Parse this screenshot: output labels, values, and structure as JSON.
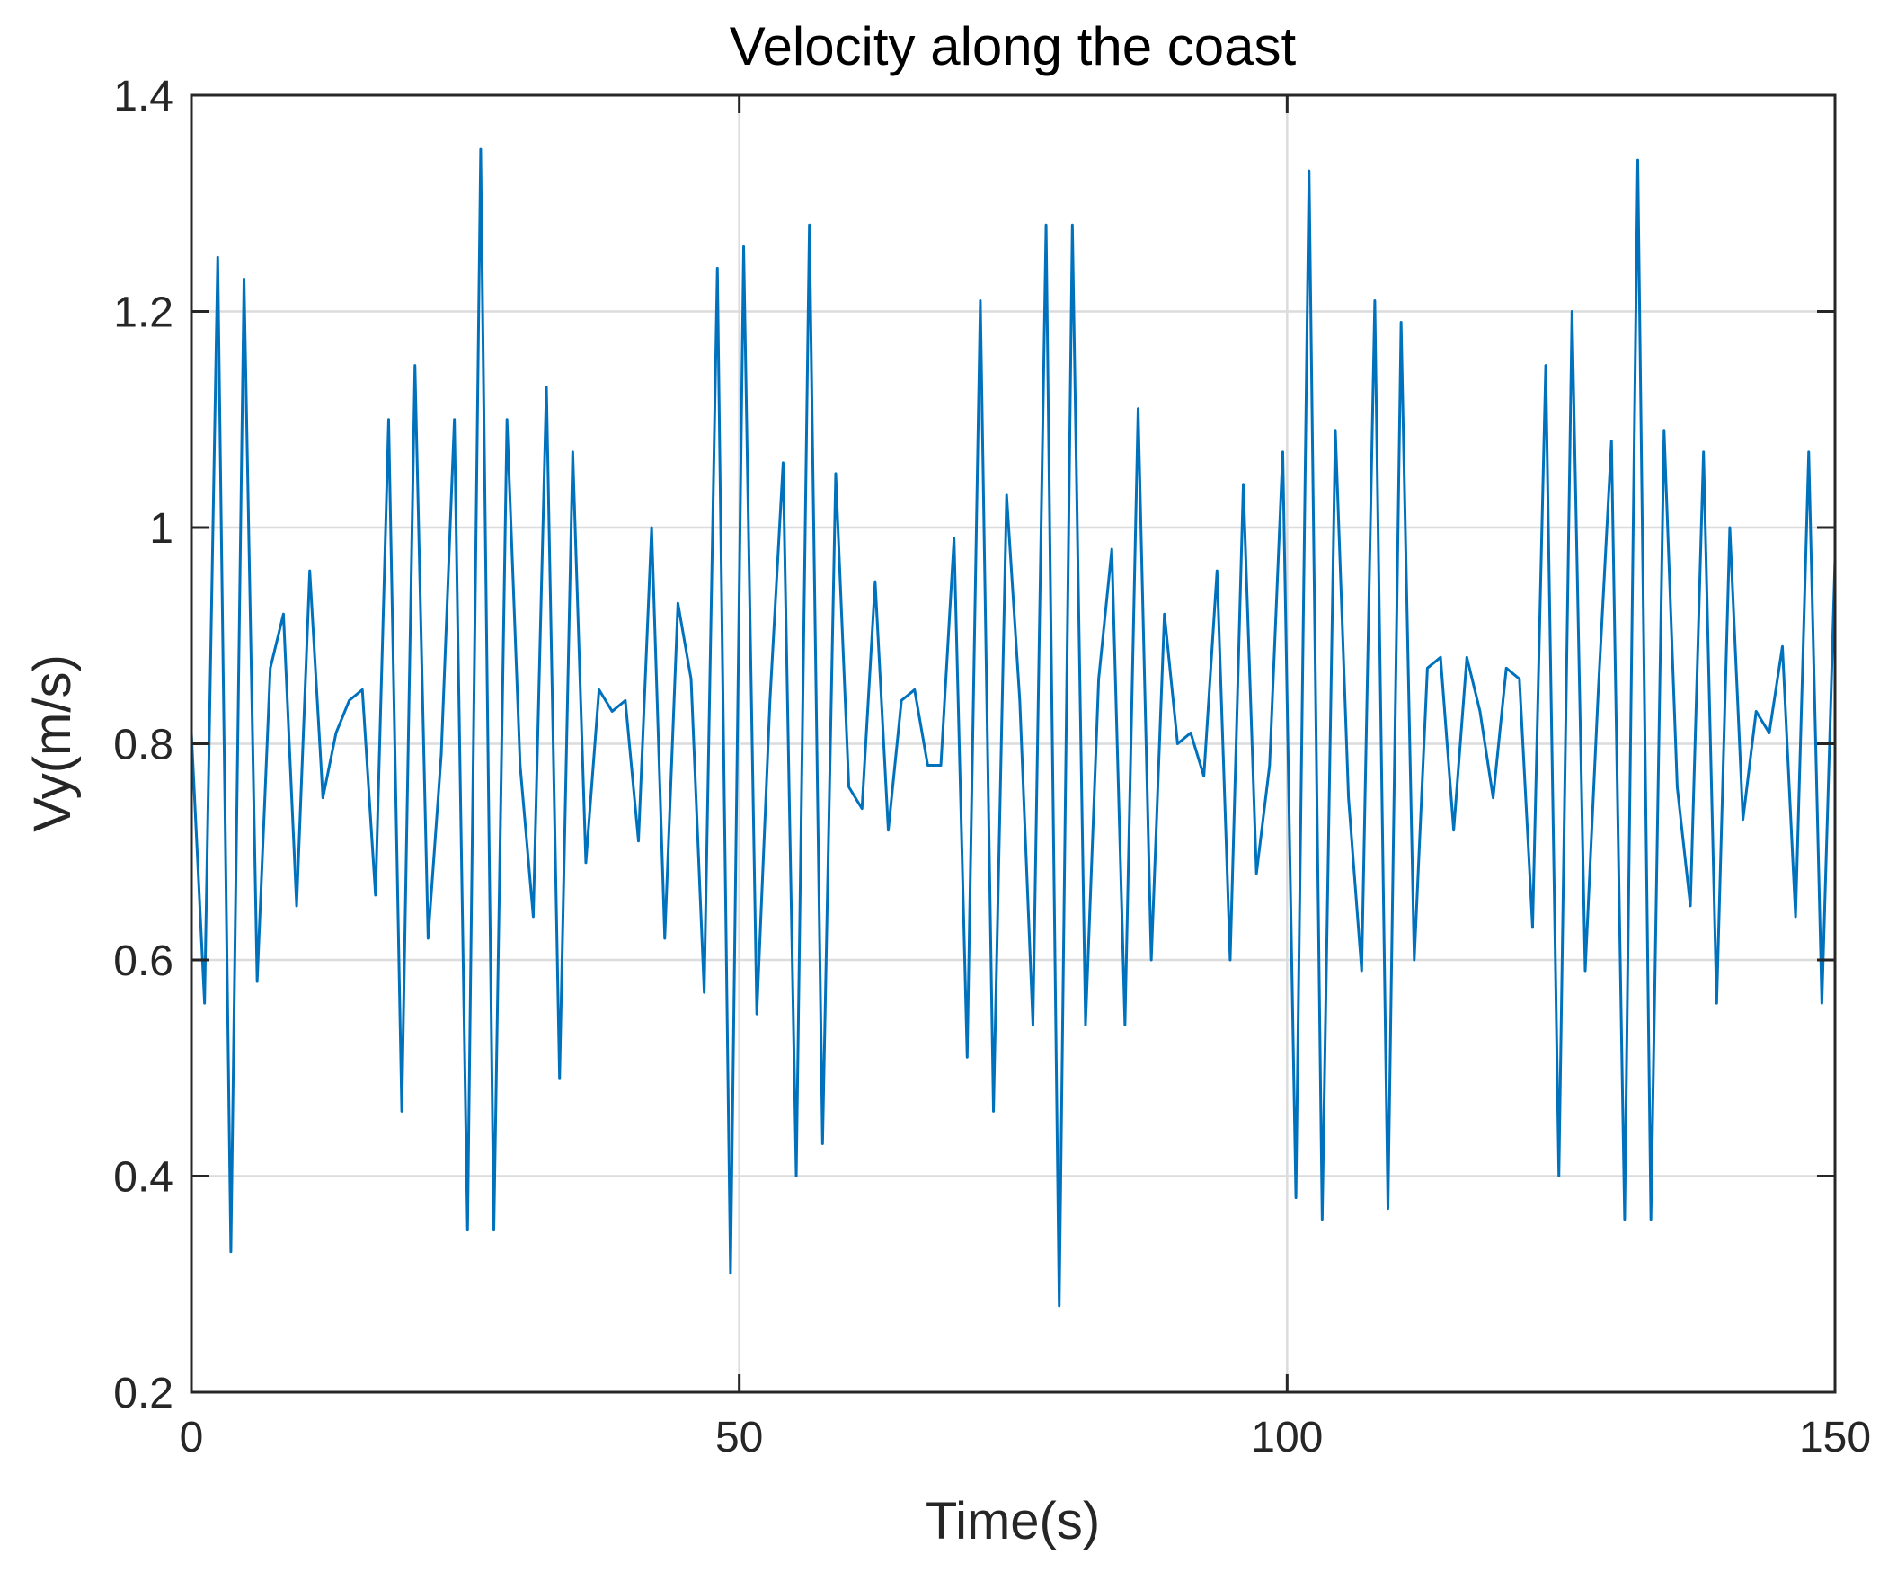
{
  "chart_data": {
    "type": "line",
    "title": "Velocity along the coast",
    "xlabel": "Time(s)",
    "ylabel": "Vy(m/s)",
    "xlim": [
      0,
      150
    ],
    "ylim": [
      0.2,
      1.4
    ],
    "xticks": [
      0,
      50,
      100,
      150
    ],
    "xtick_labels": [
      "0",
      "50",
      "100",
      "150"
    ],
    "yticks": [
      0.2,
      0.4,
      0.6,
      0.8,
      1.0,
      1.2,
      1.4
    ],
    "ytick_labels": [
      "0.2",
      "0.4",
      "0.6",
      "0.8",
      "1",
      "1.2",
      "1.4"
    ],
    "grid": true,
    "line_color": "#0072bd",
    "series": [
      {
        "name": "Vy",
        "x": [
          0,
          1.2,
          2.4,
          3.6,
          4.8,
          6.0,
          7.2,
          8.4,
          9.6,
          10.8,
          12.0,
          13.2,
          14.4,
          15.6,
          16.8,
          18.0,
          19.2,
          20.4,
          21.6,
          22.8,
          24.0,
          25.2,
          26.4,
          27.6,
          28.8,
          30.0,
          31.2,
          32.4,
          33.6,
          34.8,
          36.0,
          37.2,
          38.4,
          39.6,
          40.8,
          42.0,
          43.2,
          44.4,
          45.6,
          46.8,
          48.0,
          49.2,
          50.4,
          51.6,
          52.8,
          54.0,
          55.2,
          56.4,
          57.6,
          58.8,
          60.0,
          61.2,
          62.4,
          63.6,
          64.8,
          66.0,
          67.2,
          68.4,
          69.6,
          70.8,
          72.0,
          73.2,
          74.4,
          75.6,
          76.8,
          78.0,
          79.2,
          80.4,
          81.6,
          82.8,
          84.0,
          85.2,
          86.4,
          87.6,
          88.8,
          90.0,
          91.2,
          92.4,
          93.6,
          94.8,
          96.0,
          97.2,
          98.4,
          99.6,
          100.8,
          102.0,
          103.2,
          104.4,
          105.6,
          106.8,
          108.0,
          109.2,
          110.4,
          111.6,
          112.8,
          114.0,
          115.2,
          116.4,
          117.6,
          118.8,
          120.0,
          121.2,
          122.4,
          123.6,
          124.8,
          126.0,
          127.2,
          128.4,
          129.6,
          130.8,
          132.0,
          133.2,
          134.4,
          135.6,
          136.8,
          138.0,
          139.2,
          140.4,
          141.6,
          142.8,
          144.0,
          145.2,
          146.4,
          147.6,
          148.8,
          150.0
        ],
        "values": [
          0.81,
          0.56,
          1.25,
          0.33,
          1.23,
          0.58,
          0.87,
          0.92,
          0.65,
          0.96,
          0.75,
          0.81,
          0.84,
          0.85,
          0.66,
          1.1,
          0.46,
          1.15,
          0.62,
          0.79,
          1.1,
          0.35,
          1.35,
          0.35,
          1.1,
          0.78,
          0.64,
          1.13,
          0.49,
          1.07,
          0.69,
          0.85,
          0.83,
          0.84,
          0.71,
          1.0,
          0.62,
          0.93,
          0.86,
          0.57,
          1.24,
          0.31,
          1.26,
          0.55,
          0.84,
          1.06,
          0.4,
          1.28,
          0.43,
          1.05,
          0.76,
          0.74,
          0.95,
          0.72,
          0.84,
          0.85,
          0.78,
          0.78,
          0.99,
          0.51,
          1.21,
          0.46,
          1.03,
          0.84,
          0.54,
          1.28,
          0.28,
          1.28,
          0.54,
          0.86,
          0.98,
          0.54,
          1.11,
          0.6,
          0.92,
          0.8,
          0.81,
          0.77,
          0.96,
          0.6,
          1.04,
          0.68,
          0.78,
          1.07,
          0.38,
          1.33,
          0.36,
          1.09,
          0.75,
          0.59,
          1.21,
          0.37,
          1.19,
          0.6,
          0.87,
          0.88,
          0.72,
          0.88,
          0.83,
          0.75,
          0.87,
          0.86,
          0.63,
          1.15,
          0.4,
          1.2,
          0.59,
          0.85,
          1.08,
          0.36,
          1.34,
          0.36,
          1.09,
          0.76,
          0.65,
          1.07,
          0.56,
          1.0,
          0.73,
          0.83,
          0.81,
          0.89,
          0.64,
          1.07,
          0.56,
          0.97
        ]
      }
    ]
  }
}
